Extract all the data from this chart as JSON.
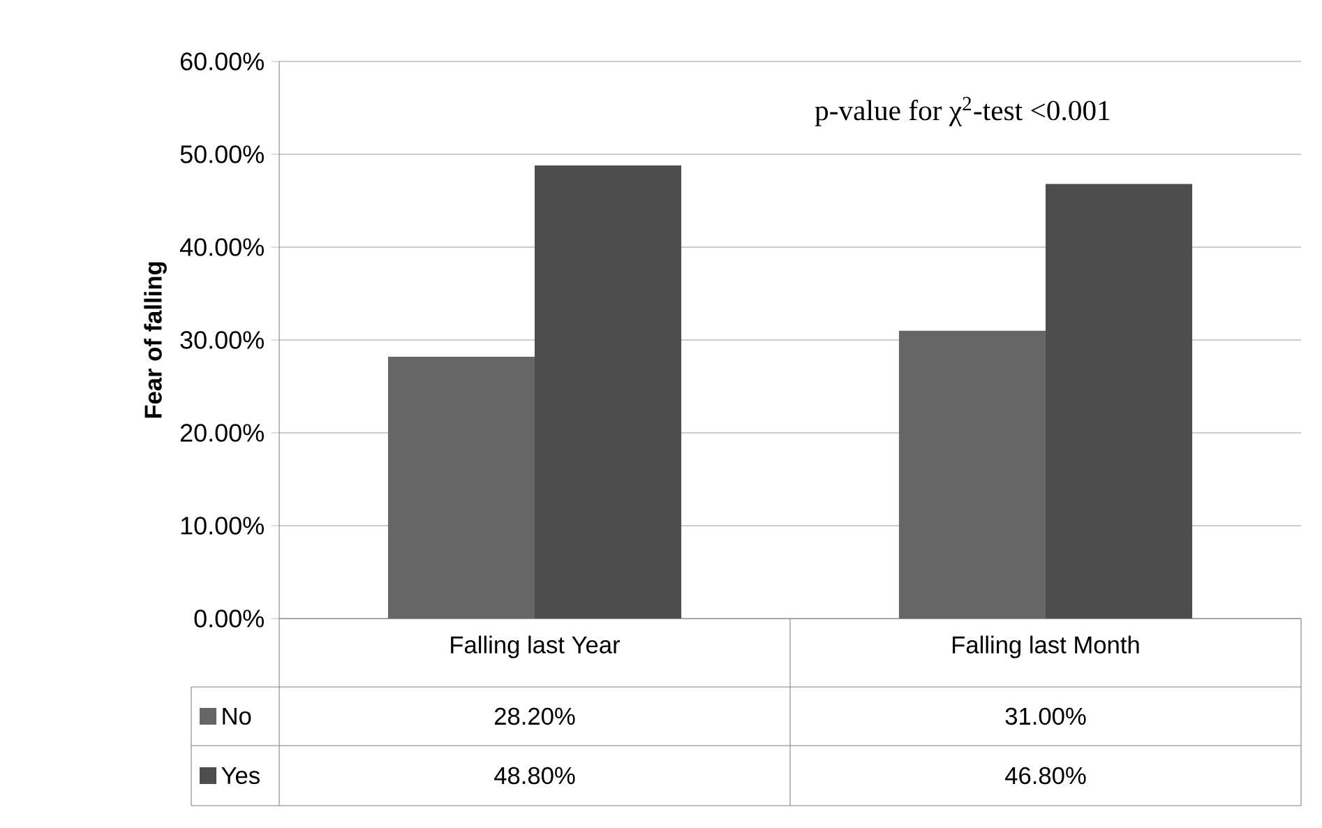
{
  "chart_data": {
    "type": "bar",
    "ylabel": "Fear of falling",
    "categories": [
      "Falling last Year",
      "Falling last Month"
    ],
    "series": [
      {
        "name": "No",
        "color": "#666666",
        "values": [
          28.2,
          31.0
        ],
        "value_labels": [
          "28.20%",
          "31.00%"
        ]
      },
      {
        "name": "Yes",
        "color": "#4d4d4d",
        "values": [
          48.8,
          46.8
        ],
        "value_labels": [
          "48.80%",
          "46.80%"
        ]
      }
    ],
    "ylim": [
      0,
      60
    ],
    "yticks": [
      {
        "value": 0,
        "label": "0.00%"
      },
      {
        "value": 10,
        "label": "10.00%"
      },
      {
        "value": 20,
        "label": "20.00%"
      },
      {
        "value": 30,
        "label": "30.00%"
      },
      {
        "value": 40,
        "label": "40.00%"
      },
      {
        "value": 50,
        "label": "50.00%"
      },
      {
        "value": 60,
        "label": "60.00%"
      }
    ],
    "grid": "y",
    "legend": "bottom",
    "annotations": [
      "p-value for χ$^{2}$-test <0.001"
    ]
  }
}
